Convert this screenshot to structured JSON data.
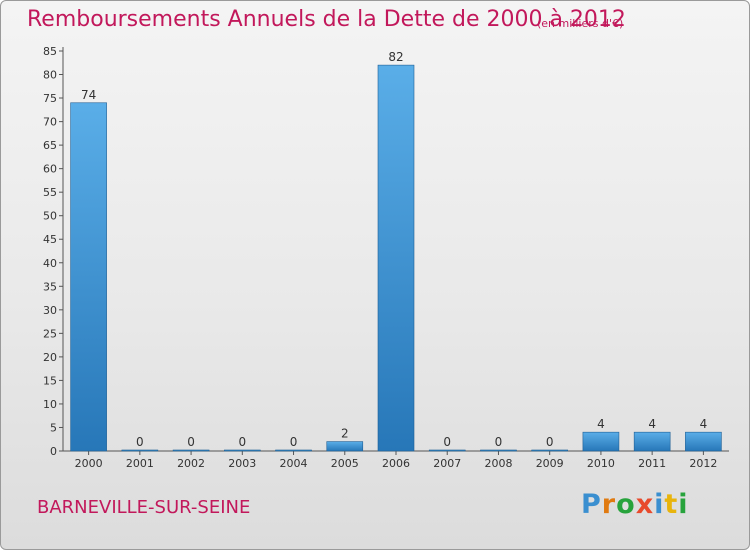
{
  "header": {
    "title": "Remboursements Annuels de la Dette de 2000 à 2012",
    "unit": "(en milliers d'€)"
  },
  "footer": {
    "town": "BARNEVILLE-SUR-SEINE",
    "logo": "Proxiti"
  },
  "colors": {
    "title": "#c2185b",
    "bar_top": "#5aaee8",
    "bar_bottom": "#2777b8"
  },
  "chart_data": {
    "type": "bar",
    "title": "Remboursements Annuels de la Dette de 2000 à 2012",
    "categories": [
      "2000",
      "2001",
      "2002",
      "2003",
      "2004",
      "2005",
      "2006",
      "2007",
      "2008",
      "2009",
      "2010",
      "2011",
      "2012"
    ],
    "values": [
      74,
      0,
      0,
      0,
      0,
      2,
      82,
      0,
      0,
      0,
      4,
      4,
      4
    ],
    "ylim": [
      0,
      85
    ],
    "yticks": [
      0,
      5,
      10,
      15,
      20,
      25,
      30,
      35,
      40,
      45,
      50,
      55,
      60,
      65,
      70,
      75,
      80,
      85
    ],
    "grid": false,
    "xlabel": "",
    "ylabel": ""
  }
}
